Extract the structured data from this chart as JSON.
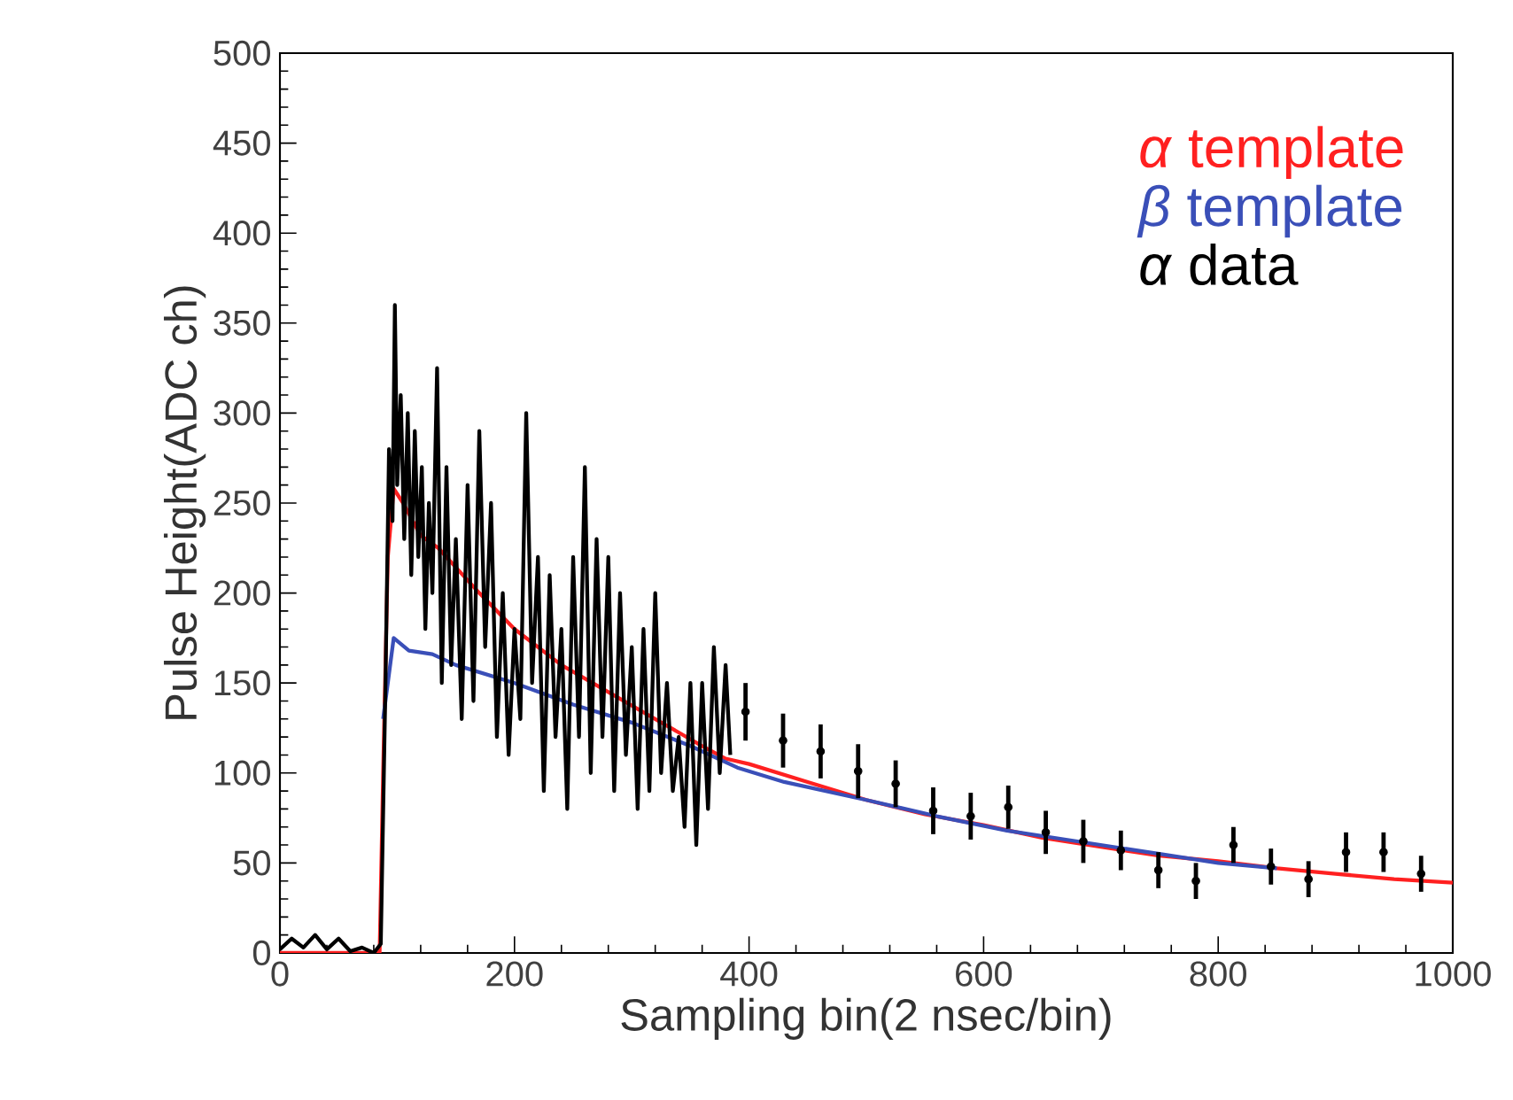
{
  "chart_data": {
    "type": "line",
    "xlabel": "Sampling bin(2 nsec/bin)",
    "ylabel": "Pulse Height(ADC ch)",
    "xlim": [
      0,
      1000
    ],
    "ylim": [
      0,
      500
    ],
    "xticks": [
      0,
      200,
      400,
      600,
      800,
      1000
    ],
    "yticks": [
      0,
      50,
      100,
      150,
      200,
      250,
      300,
      350,
      400,
      450,
      500
    ],
    "grid": false,
    "legend": "top right",
    "series": [
      {
        "name": "*α* template",
        "color": "#ff2020",
        "x": [
          0,
          85,
          88,
          92,
          97,
          105,
          120,
          135,
          170,
          200,
          240,
          280,
          320,
          360,
          380,
          400,
          450,
          500,
          550,
          600,
          650,
          700,
          750,
          800,
          850,
          900,
          950,
          1000
        ],
        "values": [
          0,
          0,
          100,
          220,
          258,
          250,
          232,
          225,
          200,
          180,
          160,
          145,
          130,
          115,
          108,
          105,
          95,
          85,
          77,
          71,
          64,
          59,
          54,
          51,
          47,
          44,
          41,
          39
        ]
      },
      {
        "name": "*β* template",
        "color": "#3a4fb8",
        "x": [
          88,
          97,
          110,
          130,
          150,
          200,
          250,
          300,
          350,
          390,
          430,
          500,
          560,
          620,
          680,
          750,
          800,
          850
        ],
        "values": [
          130,
          175,
          168,
          166,
          160,
          150,
          138,
          128,
          115,
          103,
          95,
          85,
          76,
          68,
          62,
          55,
          50,
          47
        ]
      },
      {
        "name": "*α* data",
        "color": "#000000",
        "x": [
          0,
          10,
          20,
          30,
          40,
          50,
          60,
          70,
          80,
          86,
          90,
          93,
          96,
          98,
          100,
          103,
          106,
          109,
          112,
          115,
          118,
          121,
          124,
          127,
          130,
          134,
          138,
          142,
          146,
          150,
          155,
          160,
          165,
          170,
          175,
          180,
          185,
          190,
          195,
          200,
          205,
          210,
          215,
          220,
          225,
          230,
          235,
          240,
          245,
          250,
          255,
          260,
          265,
          270,
          275,
          280,
          285,
          290,
          295,
          300,
          305,
          310,
          315,
          320,
          325,
          330,
          335,
          340,
          345,
          350,
          355,
          360,
          365,
          370,
          375,
          380,
          384
        ],
        "values": [
          2,
          8,
          3,
          10,
          2,
          8,
          1,
          3,
          0,
          5,
          150,
          280,
          240,
          360,
          260,
          310,
          230,
          300,
          210,
          290,
          220,
          270,
          180,
          250,
          200,
          325,
          150,
          270,
          160,
          230,
          130,
          260,
          140,
          290,
          170,
          250,
          120,
          200,
          110,
          180,
          130,
          300,
          150,
          220,
          90,
          210,
          120,
          180,
          80,
          220,
          120,
          270,
          100,
          230,
          120,
          220,
          90,
          200,
          110,
          170,
          80,
          180,
          90,
          200,
          100,
          150,
          90,
          120,
          70,
          150,
          60,
          150,
          80,
          170,
          100,
          160,
          110
        ]
      },
      {
        "type": "scatter",
        "marker": "circle",
        "color": "#000000",
        "x": [
          397,
          429,
          461,
          493,
          525,
          557,
          589,
          621,
          653,
          685,
          717,
          749,
          781,
          813,
          845,
          877,
          909,
          941,
          973
        ],
        "values": [
          134,
          118,
          112,
          101,
          94,
          79,
          76,
          81,
          67,
          62,
          57,
          46,
          40,
          60,
          48,
          41,
          56,
          56,
          44
        ],
        "errors": [
          16,
          15,
          15,
          15,
          13,
          13,
          13,
          12,
          12,
          12,
          11,
          10,
          10,
          10,
          10,
          10,
          11,
          11,
          10
        ]
      }
    ]
  }
}
